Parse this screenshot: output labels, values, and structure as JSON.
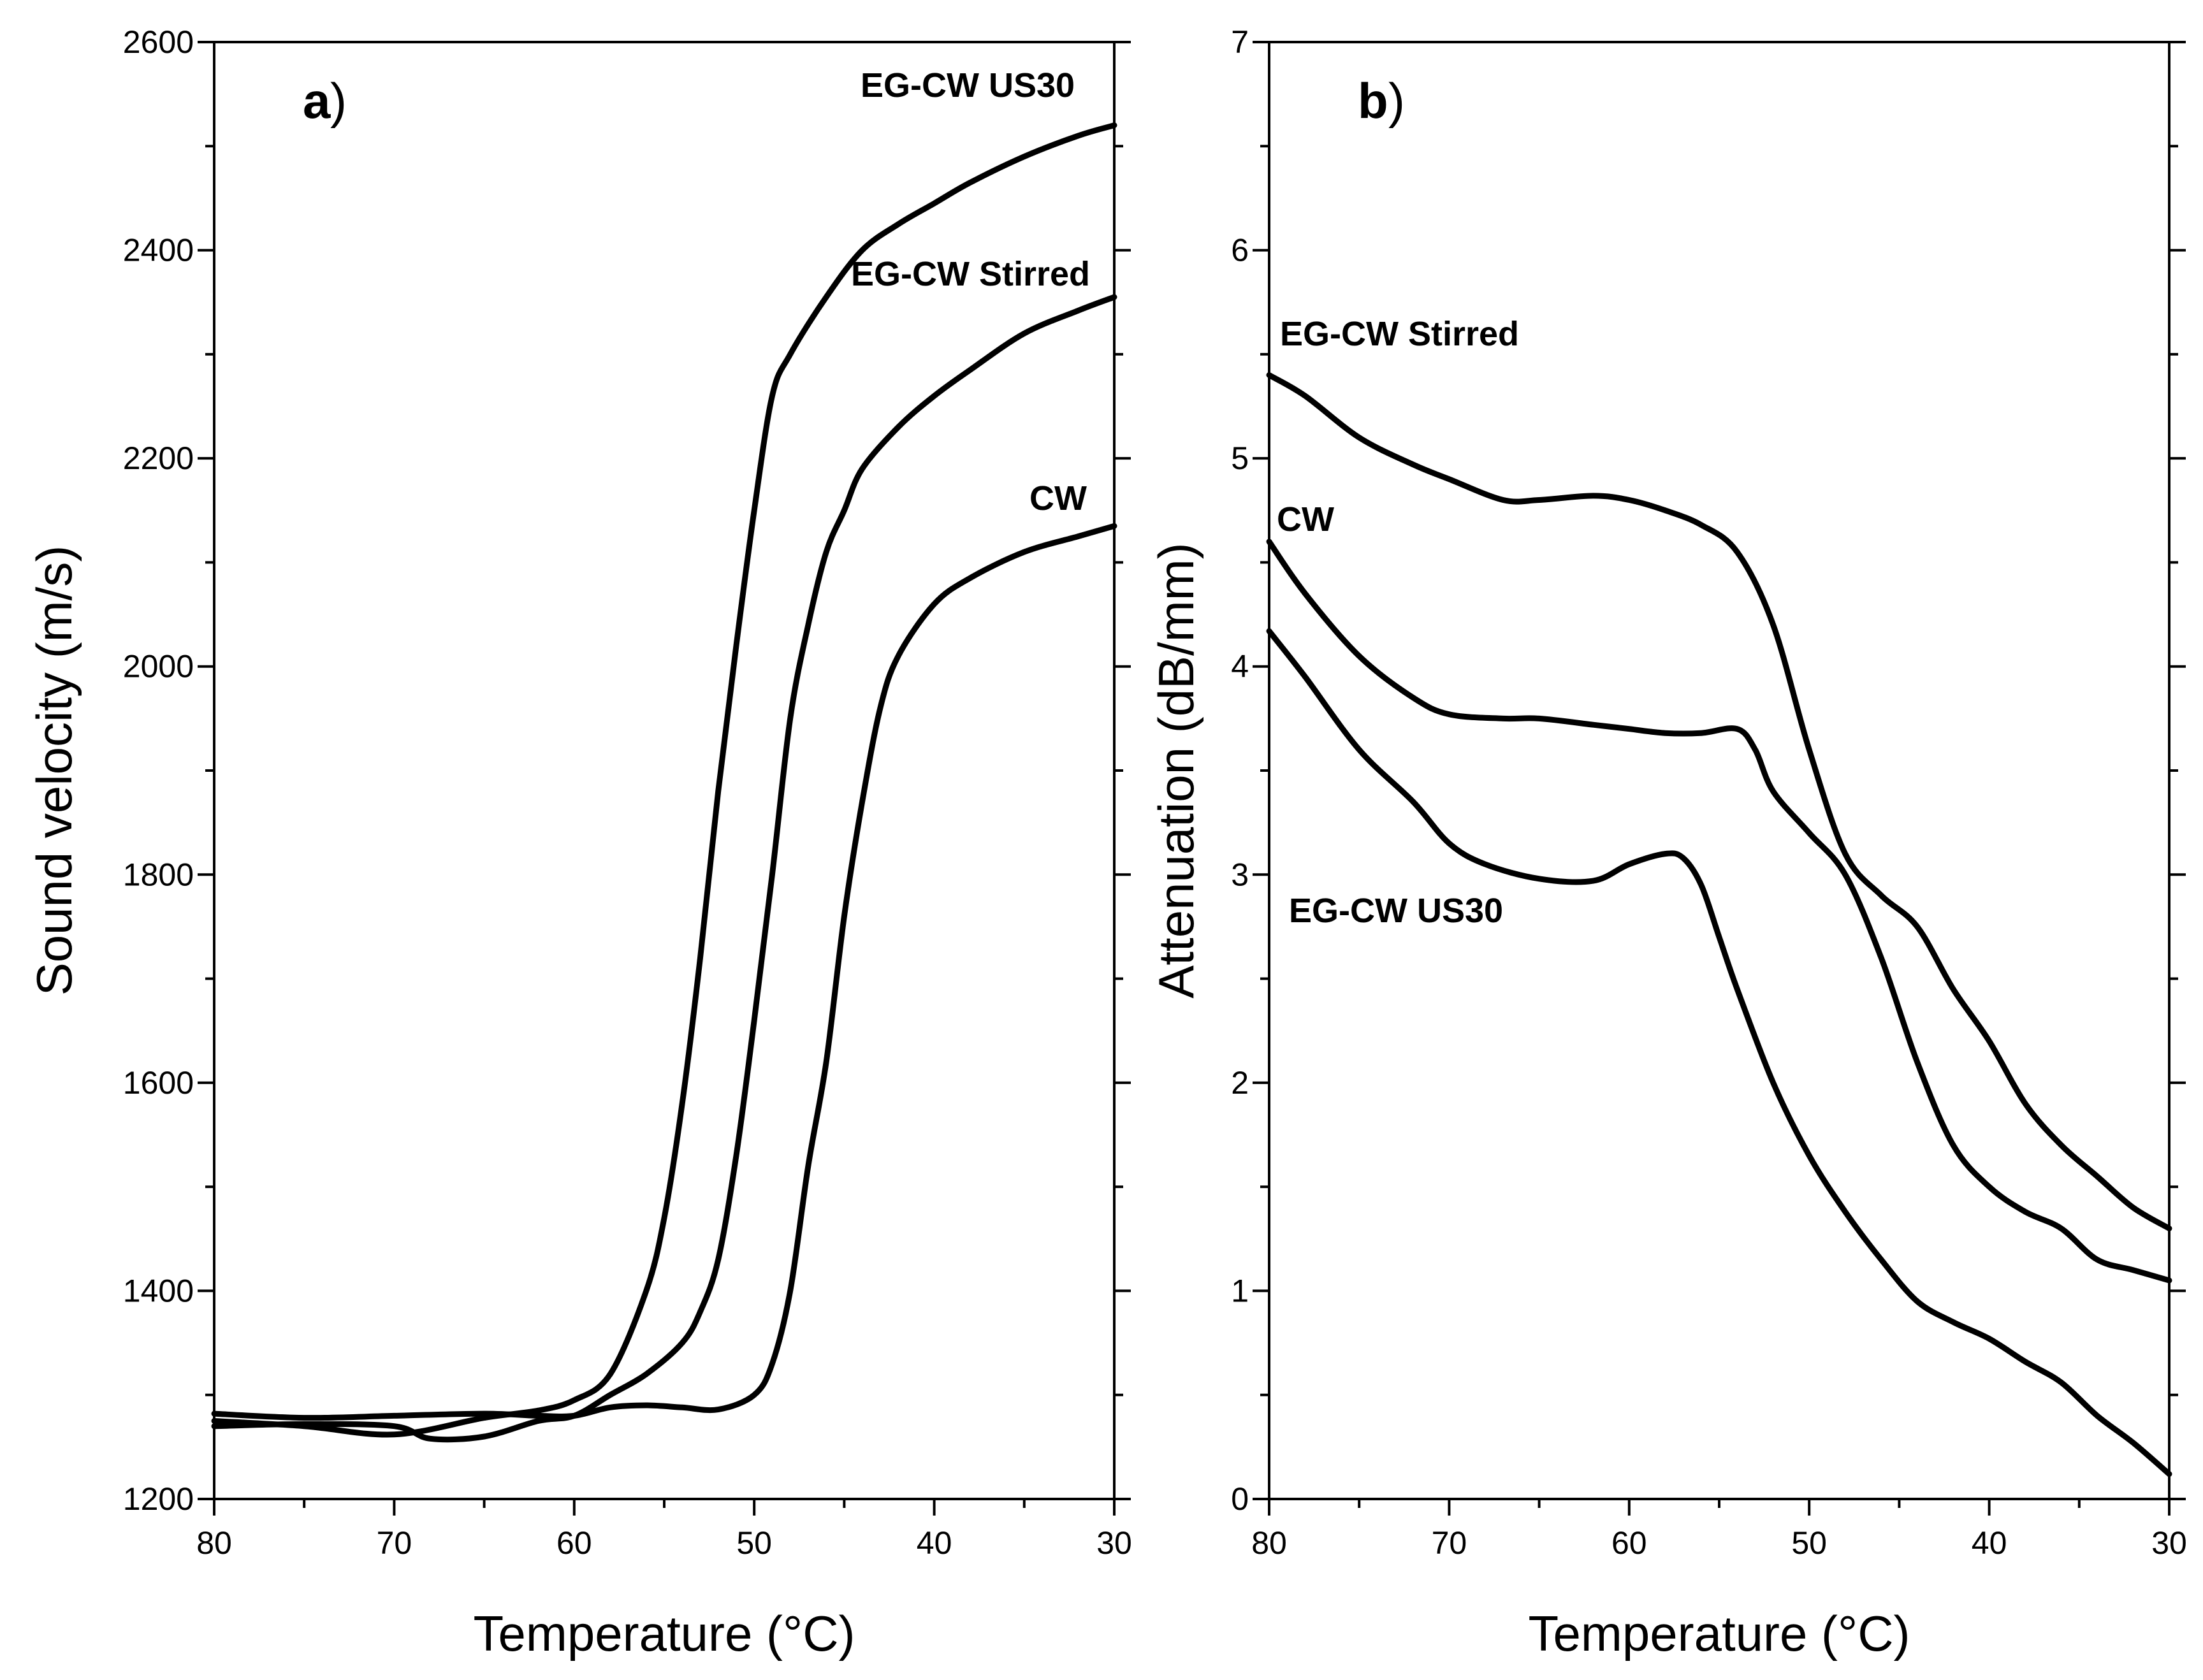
{
  "chart_data": [
    {
      "type": "line",
      "panel_label": "a",
      "xlabel": "Temperature (°C)",
      "ylabel": "Sound velocity (m/s)",
      "xlim": [
        80,
        30
      ],
      "ylim": [
        1200,
        2600
      ],
      "x_reversed": true,
      "x_ticks": [
        80,
        70,
        60,
        50,
        40,
        30
      ],
      "y_ticks": [
        1200,
        1400,
        1600,
        1800,
        2000,
        2200,
        2400,
        2600
      ],
      "grid": false,
      "series": [
        {
          "name": "EG-CW US30",
          "x": [
            80,
            75,
            70,
            65,
            62,
            60,
            58,
            56,
            55,
            54,
            53,
            52,
            51,
            50,
            49,
            48,
            46,
            44,
            42,
            40,
            38,
            35,
            32,
            30
          ],
          "y": [
            1275,
            1270,
            1262,
            1278,
            1285,
            1295,
            1320,
            1400,
            1470,
            1580,
            1720,
            1880,
            2020,
            2150,
            2260,
            2300,
            2355,
            2400,
            2425,
            2445,
            2465,
            2490,
            2510,
            2520
          ]
        },
        {
          "name": "EG-CW Stirred",
          "x": [
            80,
            75,
            70,
            68,
            65,
            62,
            60,
            58,
            56,
            54,
            53,
            52,
            51,
            50,
            49,
            48,
            47,
            46,
            45,
            44,
            42,
            40,
            38,
            35,
            32,
            30
          ],
          "y": [
            1270,
            1272,
            1270,
            1258,
            1260,
            1275,
            1280,
            1300,
            1320,
            1350,
            1380,
            1430,
            1530,
            1660,
            1800,
            1950,
            2040,
            2110,
            2150,
            2190,
            2230,
            2260,
            2285,
            2320,
            2342,
            2355
          ]
        },
        {
          "name": "CW",
          "x": [
            80,
            75,
            70,
            65,
            62,
            60,
            58,
            56,
            54,
            52,
            50,
            49,
            48,
            47,
            46,
            45,
            44,
            43,
            42,
            40,
            38,
            35,
            32,
            30
          ],
          "y": [
            1282,
            1278,
            1280,
            1282,
            1280,
            1280,
            1288,
            1290,
            1288,
            1286,
            1300,
            1330,
            1400,
            1520,
            1620,
            1760,
            1870,
            1960,
            2010,
            2060,
            2085,
            2110,
            2125,
            2135
          ]
        }
      ]
    },
    {
      "type": "line",
      "panel_label": "b",
      "xlabel": "Temperature (°C)",
      "ylabel": "Attenuation (dB/mm)",
      "xlim": [
        80,
        30
      ],
      "ylim": [
        0,
        7
      ],
      "x_reversed": true,
      "x_ticks": [
        80,
        70,
        60,
        50,
        40,
        30
      ],
      "y_ticks": [
        0,
        1,
        2,
        3,
        4,
        5,
        6,
        7
      ],
      "grid": false,
      "series": [
        {
          "name": "EG-CW Stirred",
          "x": [
            80,
            78,
            75,
            72,
            70,
            67,
            65,
            62,
            60,
            58,
            56,
            54,
            52,
            50,
            48,
            46,
            44,
            42,
            40,
            38,
            36,
            34,
            32,
            30
          ],
          "y": [
            5.4,
            5.3,
            5.1,
            4.97,
            4.9,
            4.8,
            4.8,
            4.82,
            4.8,
            4.75,
            4.68,
            4.55,
            4.2,
            3.6,
            3.1,
            2.9,
            2.75,
            2.45,
            2.2,
            1.9,
            1.7,
            1.55,
            1.4,
            1.3
          ]
        },
        {
          "name": "CW",
          "x": [
            80,
            78,
            75,
            72,
            70,
            67,
            65,
            62,
            60,
            58,
            56,
            54,
            53,
            52,
            50,
            48,
            46,
            44,
            42,
            40,
            38,
            36,
            34,
            32,
            30
          ],
          "y": [
            4.6,
            4.35,
            4.05,
            3.85,
            3.77,
            3.75,
            3.75,
            3.72,
            3.7,
            3.68,
            3.68,
            3.7,
            3.6,
            3.4,
            3.2,
            3.0,
            2.6,
            2.1,
            1.7,
            1.5,
            1.38,
            1.3,
            1.15,
            1.1,
            1.05
          ]
        },
        {
          "name": "EG-CW US30",
          "x": [
            80,
            78,
            75,
            72,
            70,
            68,
            65,
            62,
            60,
            58,
            57,
            56,
            55,
            54,
            52,
            50,
            48,
            46,
            44,
            42,
            40,
            38,
            36,
            34,
            32,
            30
          ],
          "y": [
            4.17,
            3.95,
            3.6,
            3.35,
            3.15,
            3.05,
            2.98,
            2.97,
            3.05,
            3.1,
            3.08,
            2.95,
            2.7,
            2.45,
            2.0,
            1.65,
            1.38,
            1.15,
            0.95,
            0.85,
            0.77,
            0.66,
            0.56,
            0.4,
            0.27,
            0.12
          ]
        }
      ]
    }
  ]
}
